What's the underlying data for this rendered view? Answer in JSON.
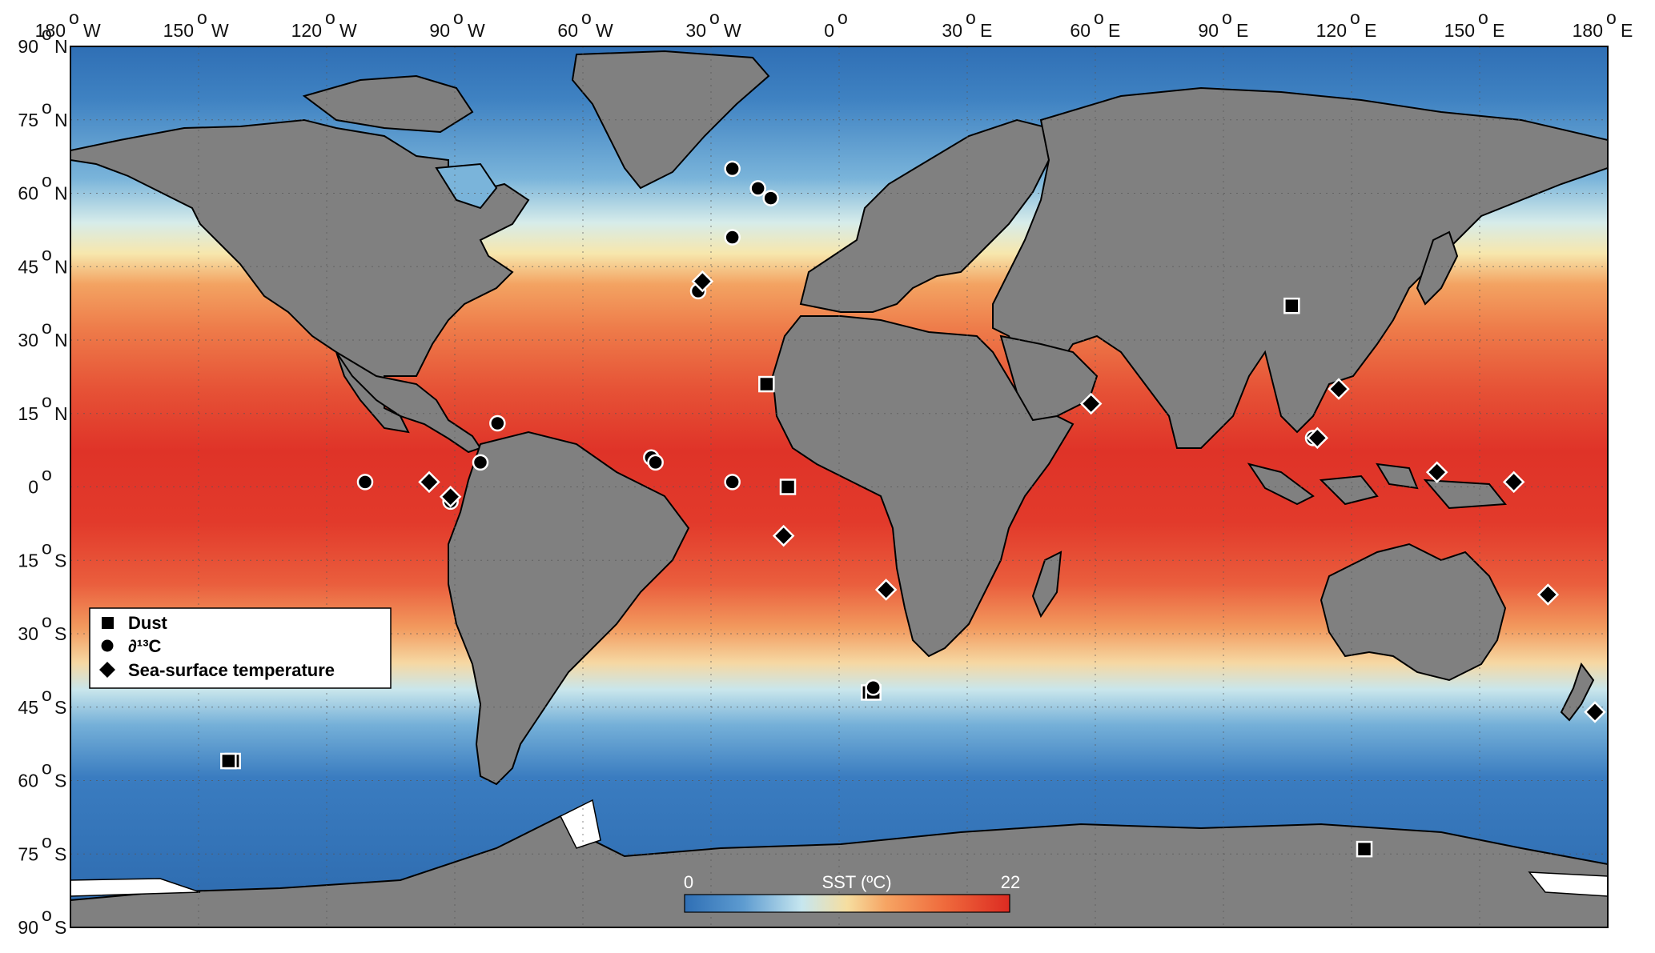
{
  "axes": {
    "top_labels": [
      {
        "deg": "180",
        "dir": "W"
      },
      {
        "deg": "150",
        "dir": "W"
      },
      {
        "deg": "120",
        "dir": "W"
      },
      {
        "deg": "90",
        "dir": "W"
      },
      {
        "deg": "60",
        "dir": "W"
      },
      {
        "deg": "30",
        "dir": "W"
      },
      {
        "deg": "0",
        "dir": ""
      },
      {
        "deg": "30",
        "dir": "E"
      },
      {
        "deg": "60",
        "dir": "E"
      },
      {
        "deg": "90",
        "dir": "E"
      },
      {
        "deg": "120",
        "dir": "E"
      },
      {
        "deg": "150",
        "dir": "E"
      },
      {
        "deg": "180",
        "dir": "E"
      }
    ],
    "left_labels": [
      {
        "deg": "90",
        "dir": "N"
      },
      {
        "deg": "75",
        "dir": "N"
      },
      {
        "deg": "60",
        "dir": "N"
      },
      {
        "deg": "45",
        "dir": "N"
      },
      {
        "deg": "30",
        "dir": "N"
      },
      {
        "deg": "15",
        "dir": "N"
      },
      {
        "deg": "0",
        "dir": ""
      },
      {
        "deg": "15",
        "dir": "S"
      },
      {
        "deg": "30",
        "dir": "S"
      },
      {
        "deg": "45",
        "dir": "S"
      },
      {
        "deg": "60",
        "dir": "S"
      },
      {
        "deg": "75",
        "dir": "S"
      },
      {
        "deg": "90",
        "dir": "S"
      }
    ],
    "degree_mark": "o"
  },
  "legend": {
    "items": [
      {
        "symbol": "square",
        "label": "Dust"
      },
      {
        "symbol": "circle",
        "label": "∂¹³C"
      },
      {
        "symbol": "diamond",
        "label": "Sea-surface temperature"
      }
    ]
  },
  "colorbar": {
    "title": "SST (ºC)",
    "min_label": "0",
    "max_label": "22",
    "colors": [
      "#2f6fb5",
      "#5d9bd0",
      "#c6e6ef",
      "#f6dea0",
      "#f6a463",
      "#ef6a3c",
      "#dc2b22"
    ]
  },
  "colors": {
    "land": "#808080",
    "ice": "#ffffff",
    "ocean_warm": "#e0302a",
    "ocean_cold": "#2b72b8"
  },
  "chart_data": {
    "type": "scatter",
    "xlim": [
      -180,
      180
    ],
    "ylim": [
      -90,
      90
    ],
    "series": [
      {
        "name": "Dust",
        "marker": "square",
        "points": [
          {
            "lon": -17,
            "lat": 21
          },
          {
            "lon": -12,
            "lat": 0
          },
          {
            "lon": 7,
            "lat": -42
          },
          {
            "lon": 8,
            "lat": -42
          },
          {
            "lon": -142,
            "lat": -56
          },
          {
            "lon": -143,
            "lat": -56
          },
          {
            "lon": 106,
            "lat": 37
          },
          {
            "lon": 123,
            "lat": -74
          }
        ]
      },
      {
        "name": "∂¹³C",
        "marker": "circle",
        "points": [
          {
            "lon": -25,
            "lat": 65
          },
          {
            "lon": -19,
            "lat": 61
          },
          {
            "lon": -16,
            "lat": 59
          },
          {
            "lon": -25,
            "lat": 51
          },
          {
            "lon": -33,
            "lat": 40
          },
          {
            "lon": -80,
            "lat": 13
          },
          {
            "lon": -84,
            "lat": 5
          },
          {
            "lon": -111,
            "lat": 1
          },
          {
            "lon": -91,
            "lat": -3
          },
          {
            "lon": -44,
            "lat": 6
          },
          {
            "lon": -43,
            "lat": 5
          },
          {
            "lon": -25,
            "lat": 1
          },
          {
            "lon": 8,
            "lat": -41
          },
          {
            "lon": 111,
            "lat": 10
          }
        ]
      },
      {
        "name": "Sea-surface temperature",
        "marker": "diamond",
        "points": [
          {
            "lon": -32,
            "lat": 42
          },
          {
            "lon": -96,
            "lat": 1
          },
          {
            "lon": -91,
            "lat": -2
          },
          {
            "lon": -13,
            "lat": -10
          },
          {
            "lon": 11,
            "lat": -21
          },
          {
            "lon": 59,
            "lat": 17
          },
          {
            "lon": 117,
            "lat": 20
          },
          {
            "lon": 112,
            "lat": 10
          },
          {
            "lon": 140,
            "lat": 3
          },
          {
            "lon": 158,
            "lat": 1
          },
          {
            "lon": 166,
            "lat": -22
          },
          {
            "lon": 177,
            "lat": -46
          }
        ]
      }
    ]
  }
}
